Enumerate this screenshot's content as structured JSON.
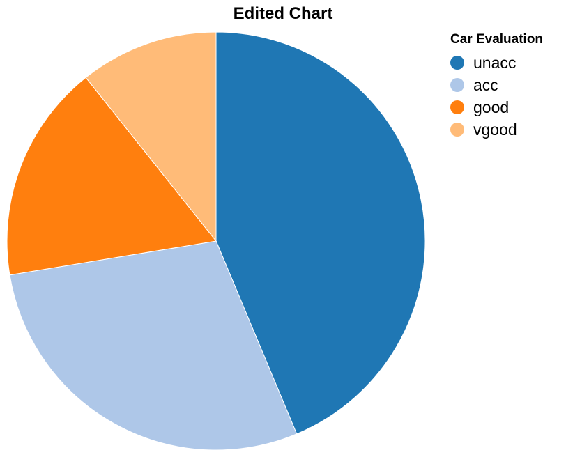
{
  "chart_data": {
    "type": "pie",
    "title": "Edited Chart",
    "legend_title": "Car Evaluation",
    "legend_placement": "top-right",
    "categories": [
      "unacc",
      "acc",
      "good",
      "vgood"
    ],
    "values": [
      43.7,
      28.7,
      16.9,
      10.7
    ],
    "colors": [
      "#1f77b4",
      "#aec7e8",
      "#ff7f0e",
      "#ffbb78"
    ]
  }
}
